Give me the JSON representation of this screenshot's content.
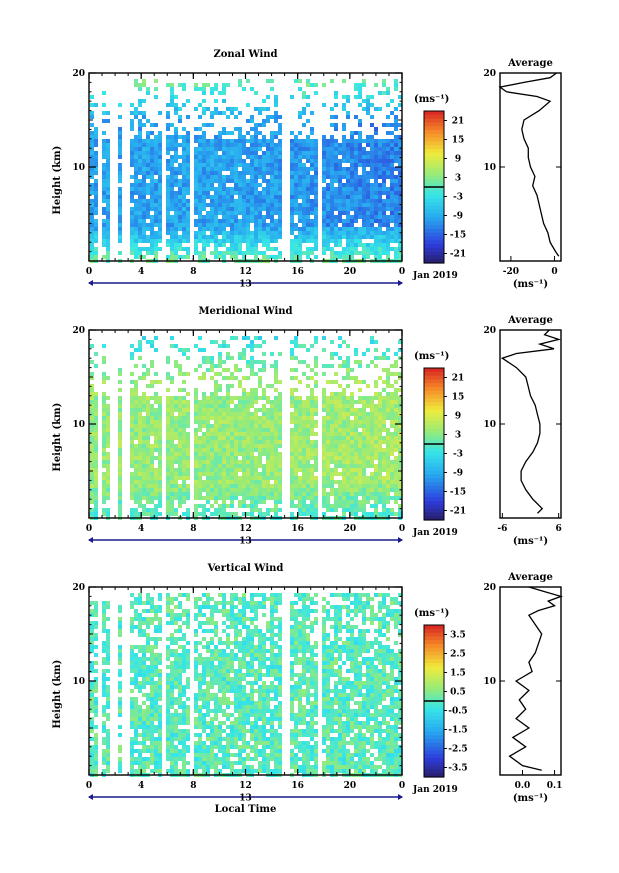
{
  "figure": {
    "xlabel": "Local Time",
    "date_day": "13",
    "date_label": "Jan 2019",
    "cbar_unit": "(ms⁻¹)",
    "avg_title": "Average",
    "avg_unit": "(ms⁻¹)"
  },
  "chart_data": [
    {
      "type": "heatmap",
      "title": "Zonal Wind",
      "ylabel": "Height (km)",
      "xlabel": "",
      "x_ticks": [
        "0",
        "4",
        "8",
        "12",
        "16",
        "20",
        "0"
      ],
      "y_ticks": [
        "10",
        "20"
      ],
      "xlim": [
        0,
        24
      ],
      "ylim": [
        0,
        20
      ],
      "colorbar_ticks": [
        "21",
        "15",
        "9",
        "3",
        "-3",
        "-9",
        "-15",
        "-21"
      ],
      "colorbar_range": [
        -24,
        24
      ],
      "pattern": {
        "low": 2,
        "mid": -10,
        "top": 3,
        "t_gradient": -0.25,
        "t_start": 12,
        "noise": 3
      },
      "profile": {
        "x_ticks": [
          "-20",
          "0"
        ],
        "xlim": [
          -25,
          3
        ],
        "heights": [
          0.5,
          1,
          2,
          3,
          4,
          5,
          6,
          7,
          8,
          9,
          10,
          11,
          12,
          13,
          14,
          15,
          16,
          17,
          17.5,
          18,
          18.5,
          19,
          19.5,
          20
        ],
        "values": [
          2,
          0.5,
          -2,
          -3,
          -5,
          -6,
          -7,
          -8,
          -10,
          -9,
          -11,
          -12,
          -12,
          -14,
          -15,
          -14,
          -7,
          -2,
          -8,
          -22,
          -25,
          -14,
          -2,
          1
        ]
      }
    },
    {
      "type": "heatmap",
      "title": "Meridional Wind",
      "ylabel": "Height (km)",
      "xlabel": "",
      "x_ticks": [
        "0",
        "4",
        "8",
        "12",
        "16",
        "20",
        "0"
      ],
      "y_ticks": [
        "10",
        "20"
      ],
      "xlim": [
        0,
        24
      ],
      "ylim": [
        0,
        20
      ],
      "colorbar_ticks": [
        "21",
        "15",
        "9",
        "3",
        "-3",
        "-9",
        "-15",
        "-21"
      ],
      "colorbar_range": [
        -24,
        24
      ],
      "pattern": {
        "low": -1,
        "mid": 4,
        "top": -4,
        "t_gradient": 0.1,
        "t_start": 12,
        "noise": 3
      },
      "profile": {
        "x_ticks": [
          "-6",
          "6"
        ],
        "xlim": [
          -6.5,
          6.5
        ],
        "heights": [
          0.5,
          1,
          2,
          3,
          4,
          5,
          6,
          7,
          8,
          9,
          10,
          11,
          12,
          13,
          14,
          15,
          16,
          17,
          17.5,
          18,
          18.5,
          19,
          19.5,
          20
        ],
        "values": [
          1.5,
          2.5,
          0.5,
          -1,
          -2,
          -2,
          -1,
          0.5,
          1.5,
          2,
          2,
          1.5,
          1,
          0,
          -0.5,
          -1,
          -3,
          -6,
          -3,
          5,
          2,
          6,
          3,
          4
        ]
      }
    },
    {
      "type": "heatmap",
      "title": "Vertical Wind",
      "ylabel": "Height (km)",
      "xlabel": "Local Time",
      "x_ticks": [
        "0",
        "4",
        "8",
        "12",
        "16",
        "20",
        "0"
      ],
      "y_ticks": [
        "10",
        "20"
      ],
      "xlim": [
        0,
        24
      ],
      "ylim": [
        0,
        20
      ],
      "colorbar_ticks": [
        "3.5",
        "2.5",
        "1.5",
        "0.5",
        "-0.5",
        "-1.5",
        "-2.5",
        "-3.5"
      ],
      "colorbar_range": [
        -4,
        4
      ],
      "pattern": {
        "low": 0,
        "mid": 0,
        "top": 0,
        "t_gradient": 0,
        "t_start": 12,
        "noise": 0.6
      },
      "profile": {
        "x_ticks": [
          "0.0",
          "0.1"
        ],
        "xlim": [
          -0.07,
          0.12
        ],
        "heights": [
          0.5,
          1,
          2,
          3,
          4,
          5,
          6,
          7,
          8,
          9,
          10,
          11,
          12,
          13,
          14,
          15,
          16,
          17,
          17.5,
          18,
          18.5,
          19,
          19.5,
          20
        ],
        "values": [
          0.06,
          0.0,
          -0.04,
          0.01,
          -0.03,
          0.02,
          -0.02,
          0.01,
          -0.01,
          0.02,
          -0.02,
          0.03,
          0.02,
          0.04,
          0.05,
          0.06,
          0.04,
          0.02,
          0.05,
          0.1,
          0.08,
          0.12,
          0.07,
          0.02
        ]
      }
    }
  ]
}
